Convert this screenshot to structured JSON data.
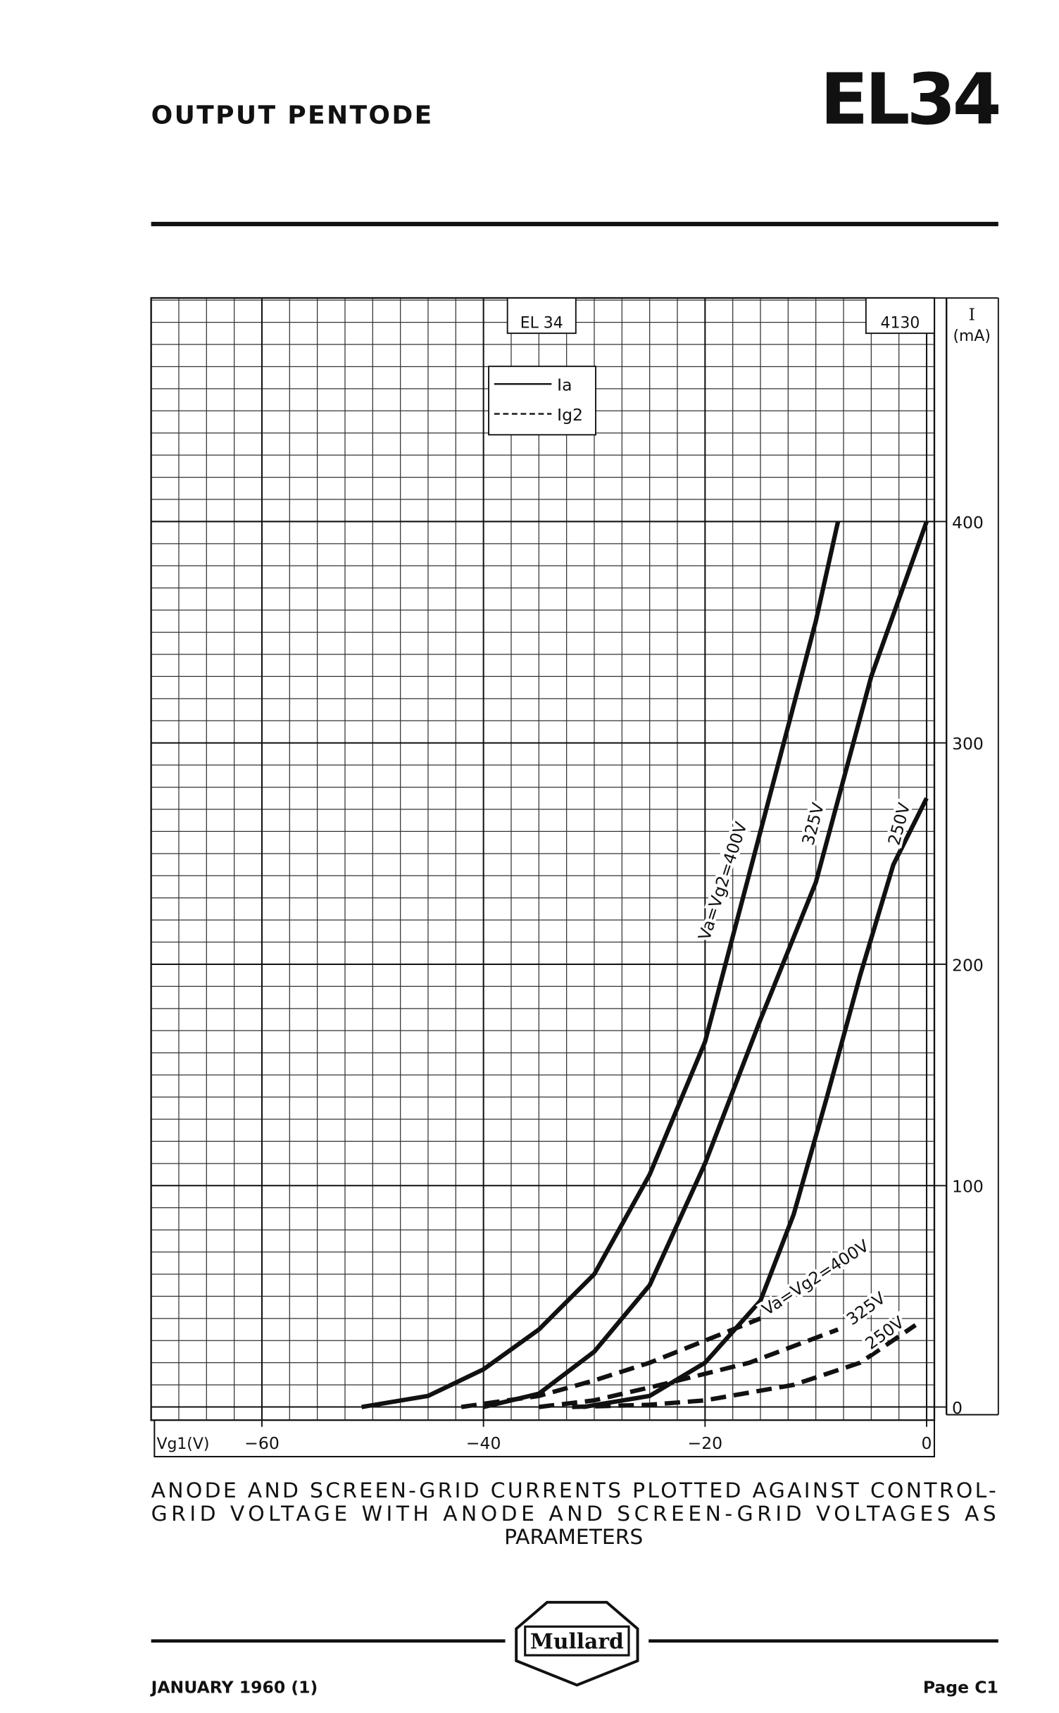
{
  "header": {
    "subtitle": "OUTPUT PENTODE",
    "title": "EL34"
  },
  "chart_data": {
    "type": "line",
    "box_label": "EL 34",
    "code": "4130",
    "y_label_symbol": "I",
    "y_label_unit": "(mA)",
    "x_label": "Vg1(V)",
    "xlim": [
      -70,
      0
    ],
    "ylim": [
      0,
      500
    ],
    "xticks": [
      {
        "value": -60,
        "label": "−60"
      },
      {
        "value": -40,
        "label": "−40"
      },
      {
        "value": -20,
        "label": "−20"
      },
      0
    ],
    "yticks": [
      0,
      100,
      200,
      300,
      400
    ],
    "grid": true,
    "legend": [
      {
        "name": "Ia",
        "dashed": false
      },
      {
        "name": "Ig2",
        "dashed": true
      }
    ],
    "series": [
      {
        "name": "Va=Vg2=400V",
        "dashed": false,
        "color": "#111111",
        "x": [
          -51,
          -45,
          -40,
          -35,
          -30,
          -25,
          -20,
          -15,
          -10,
          -8
        ],
        "values": [
          0,
          5,
          17,
          35,
          60,
          105,
          165,
          260,
          355,
          400
        ]
      },
      {
        "name": "325V",
        "dashed": false,
        "color": "#111111",
        "x": [
          -40,
          -35,
          -30,
          -25,
          -20,
          -15,
          -10,
          -5,
          0
        ],
        "values": [
          0,
          6,
          25,
          55,
          110,
          175,
          237,
          330,
          400
        ]
      },
      {
        "name": "250V",
        "dashed": false,
        "color": "#111111",
        "x": [
          -31,
          -25,
          -20,
          -15,
          -12,
          -9,
          -6,
          -3,
          0
        ],
        "values": [
          0,
          5,
          20,
          48,
          87,
          140,
          195,
          245,
          275
        ]
      },
      {
        "name": "Va=Vg2=400V",
        "dashed": true,
        "color": "#111111",
        "x": [
          -42,
          -35,
          -30,
          -25,
          -20,
          -15
        ],
        "values": [
          0,
          5,
          12,
          20,
          30,
          40
        ]
      },
      {
        "name": "325V",
        "dashed": true,
        "color": "#111111",
        "x": [
          -35,
          -30,
          -24,
          -16,
          -8
        ],
        "values": [
          0,
          3,
          10,
          20,
          35
        ]
      },
      {
        "name": "250V",
        "dashed": true,
        "color": "#111111",
        "x": [
          -32,
          -25,
          -20,
          -12,
          -6,
          -1
        ],
        "values": [
          0,
          1,
          3,
          10,
          20,
          37
        ]
      }
    ]
  },
  "caption": [
    "ANODE AND SCREEN-GRID CURRENTS PLOTTED AGAINST CONTROL-",
    "GRID VOLTAGE WITH ANODE AND SCREEN-GRID VOLTAGES AS",
    "PARAMETERS"
  ],
  "footer": {
    "date": "JANUARY 1960 (1)",
    "brand": "Mullard",
    "page": "Page C1"
  }
}
